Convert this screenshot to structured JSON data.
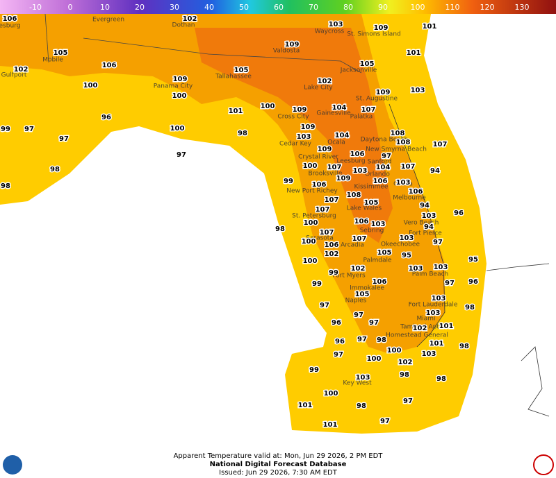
{
  "colorbar": {
    "ticks": [
      -10,
      0,
      10,
      20,
      30,
      40,
      50,
      60,
      70,
      80,
      90,
      100,
      110,
      120,
      130
    ]
  },
  "temperature_labels": [
    106,
    102,
    103,
    109,
    101,
    105,
    109,
    101,
    102,
    106,
    105,
    105,
    100,
    109,
    102,
    109,
    103,
    100,
    101,
    100,
    109,
    104,
    107,
    99,
    97,
    96,
    100,
    98,
    109,
    104,
    108,
    108,
    103,
    97,
    107,
    109,
    106,
    97,
    97,
    98,
    100,
    107,
    104,
    107,
    94,
    103,
    99,
    109,
    106,
    103,
    98,
    106,
    106,
    108,
    107,
    105,
    94,
    107,
    103,
    96,
    100,
    106,
    103,
    94,
    98,
    107,
    107,
    103,
    97,
    100,
    106,
    102,
    105,
    95,
    100,
    103,
    102,
    103,
    95,
    99,
    106,
    97,
    96,
    99,
    105,
    103,
    97,
    98,
    103,
    97,
    96,
    97,
    102,
    101,
    98,
    96,
    97,
    101,
    98,
    97,
    100,
    103,
    100,
    102,
    99,
    103,
    98,
    98,
    100,
    97,
    101,
    98,
    101,
    97
  ],
  "cities": [
    "esburg",
    "Evergreen",
    "Dothan",
    "Waycross",
    "St. Simons Island",
    "Mobile",
    "Valdosta",
    "Jacksonville",
    "Gulfport",
    "Panama City",
    "Tallahassee",
    "Lake City",
    "St. Augustine",
    "Gainesville",
    "Palatka",
    "Cross City",
    "Daytona Beach",
    "Ocala",
    "Cedar Key",
    "New Smyrna Beach",
    "Crystal River",
    "Leesburg",
    "Sanford",
    "Orlando",
    "Brooksville",
    "Cocoa",
    "Kissimmee",
    "New Port Richey",
    "Melbourne",
    "Lake Wales",
    "St. Petersburg",
    "Vero Beach",
    "Sebring",
    "Fort Pierce",
    "Sarasota",
    "Okeechobee",
    "Arcadia",
    "Palmdale",
    "Palm Beach",
    "Fort Myers",
    "Immokalee",
    "Fort Lauderdale",
    "Naples",
    "Miami",
    "Tamiami Apt",
    "Homestead General",
    "Key West"
  ],
  "footer": {
    "valid": "Apparent Temperature valid at: Mon, Jun 29 2026, 2 PM EDT",
    "source": "National Digital Forecast Database",
    "issued": "Issued: Jun 29 2026, 7:30 AM EDT"
  }
}
